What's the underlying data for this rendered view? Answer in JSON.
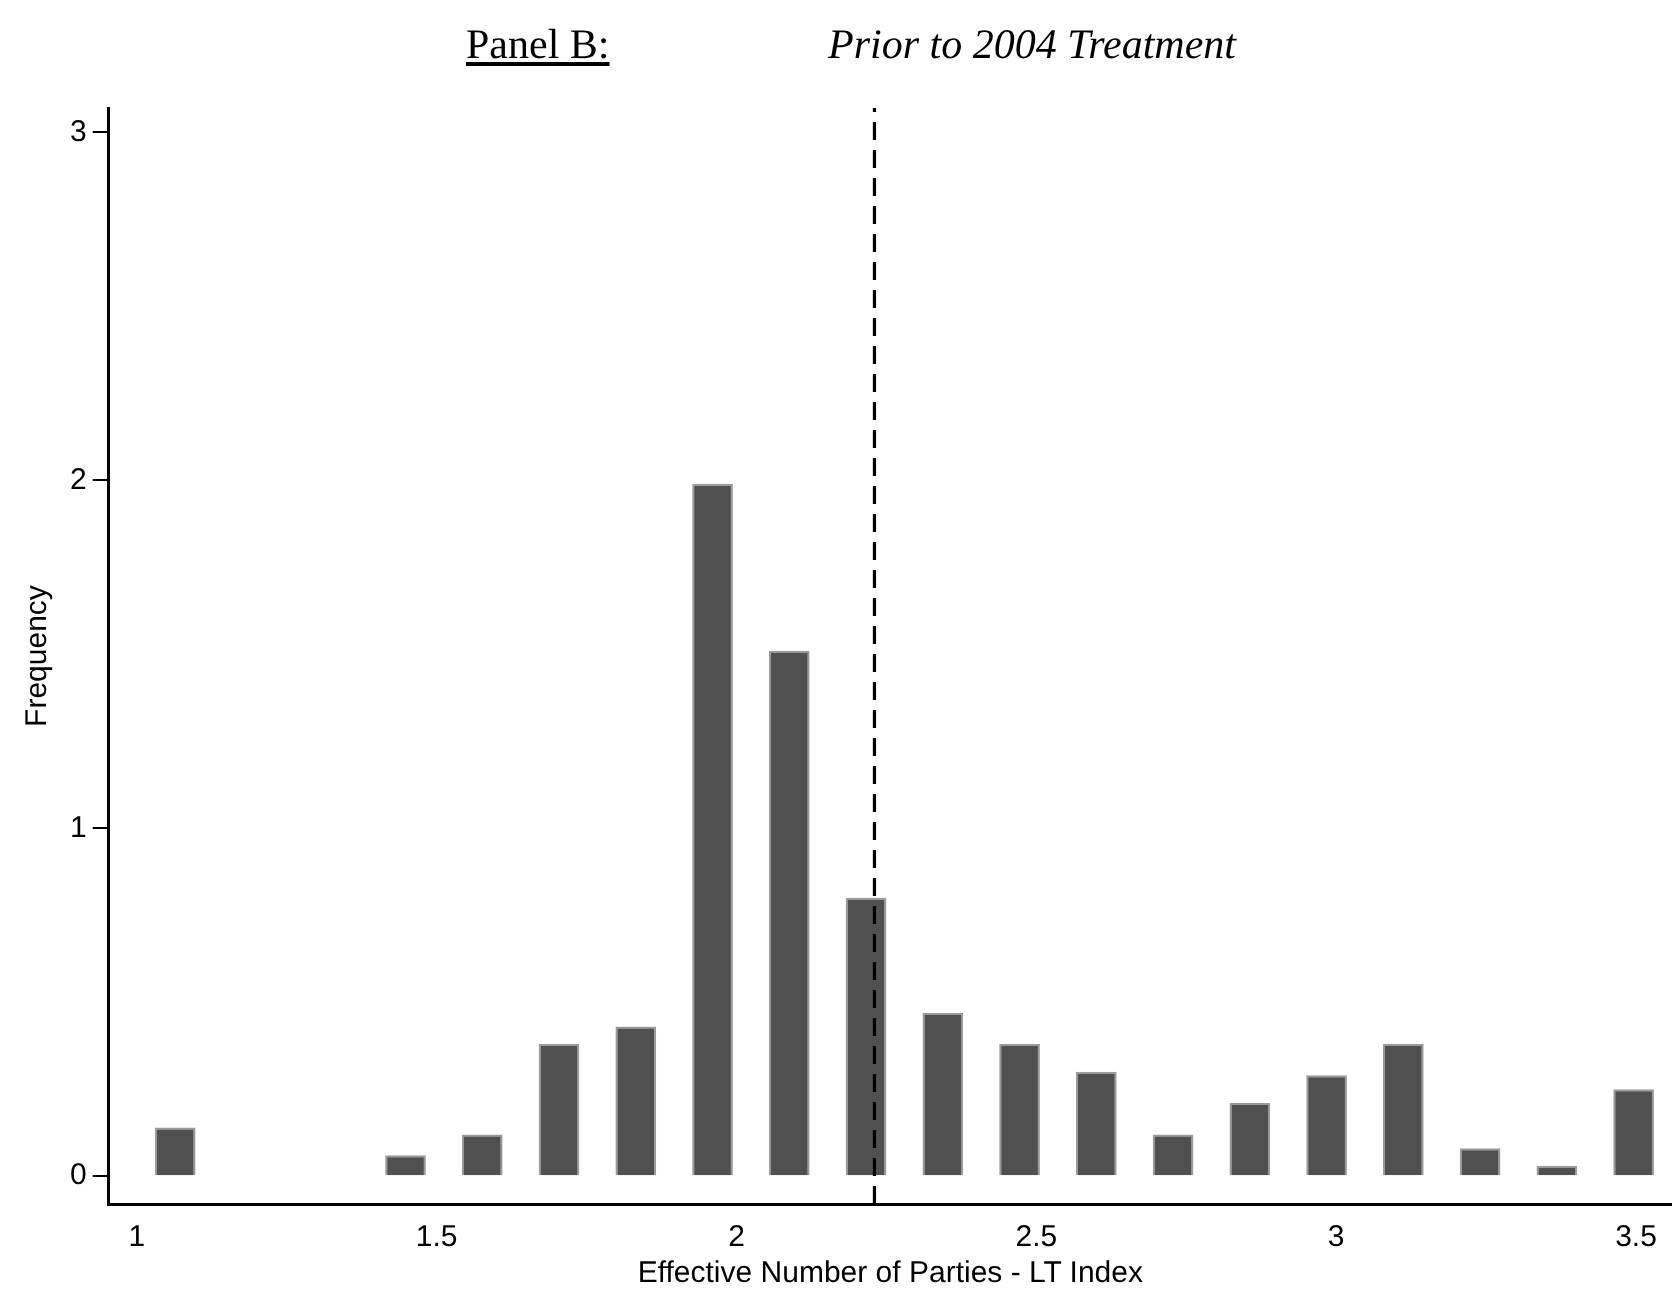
{
  "chart_data": {
    "type": "histogram",
    "title": "Panel B:",
    "subtitle": "Prior to 2004 Treatment",
    "xlabel": "Effective Number of Parties - LT Index",
    "ylabel": "Frequency",
    "bins": [
      1.0,
      1.128,
      1.256,
      1.384,
      1.512,
      1.64,
      1.768,
      1.896,
      2.024,
      2.152,
      2.28,
      2.408,
      2.536,
      2.664,
      2.792,
      2.92,
      3.048,
      3.176,
      3.304,
      3.432,
      3.56
    ],
    "values": [
      0.14,
      0,
      0,
      0.06,
      0.12,
      0.38,
      0.43,
      1.99,
      1.51,
      0.8,
      0.47,
      0.38,
      0.3,
      0.12,
      0.21,
      0.29,
      0.38,
      0.08,
      0.03,
      0.25
    ],
    "color": "#505050",
    "xlim": [
      0.953,
      3.56
    ],
    "xticks": [
      1,
      1.5,
      2,
      2.5,
      3,
      3.5
    ],
    "ylim": [
      -0.08,
      3.07
    ],
    "yticks": [
      0,
      1,
      2,
      3
    ],
    "ref_lines": [
      {
        "axis": "x",
        "value": 2.23,
        "line_style": "dashed",
        "color": "#000000"
      }
    ],
    "grid": false,
    "legend": false
  }
}
